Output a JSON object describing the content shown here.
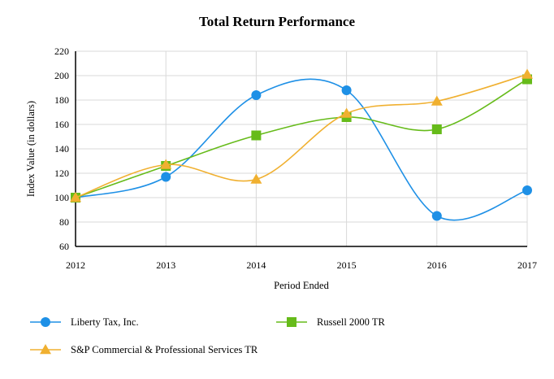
{
  "chart_data": {
    "type": "line",
    "title": "Total Return Performance",
    "xlabel": "Period Ended",
    "ylabel": "Index Value (in dollars)",
    "categories": [
      "2012",
      "2013",
      "2014",
      "2015",
      "2016",
      "2017"
    ],
    "ylim": [
      60,
      220
    ],
    "yticks": [
      60,
      80,
      100,
      120,
      140,
      160,
      180,
      200,
      220
    ],
    "grid": true,
    "legend_position": "bottom",
    "series": [
      {
        "name": "Liberty Tax, Inc.",
        "values": [
          100,
          117,
          184,
          188,
          85,
          106
        ],
        "color": "#1e90e6",
        "marker": "circle"
      },
      {
        "name": "Russell 2000 TR",
        "values": [
          100,
          126,
          151,
          166,
          156,
          197
        ],
        "color": "#66bb1a",
        "marker": "square"
      },
      {
        "name": "S&P Commercial & Professional Services TR",
        "values": [
          100,
          127,
          115,
          169,
          179,
          201
        ],
        "color": "#f0b030",
        "marker": "triangle"
      }
    ]
  }
}
